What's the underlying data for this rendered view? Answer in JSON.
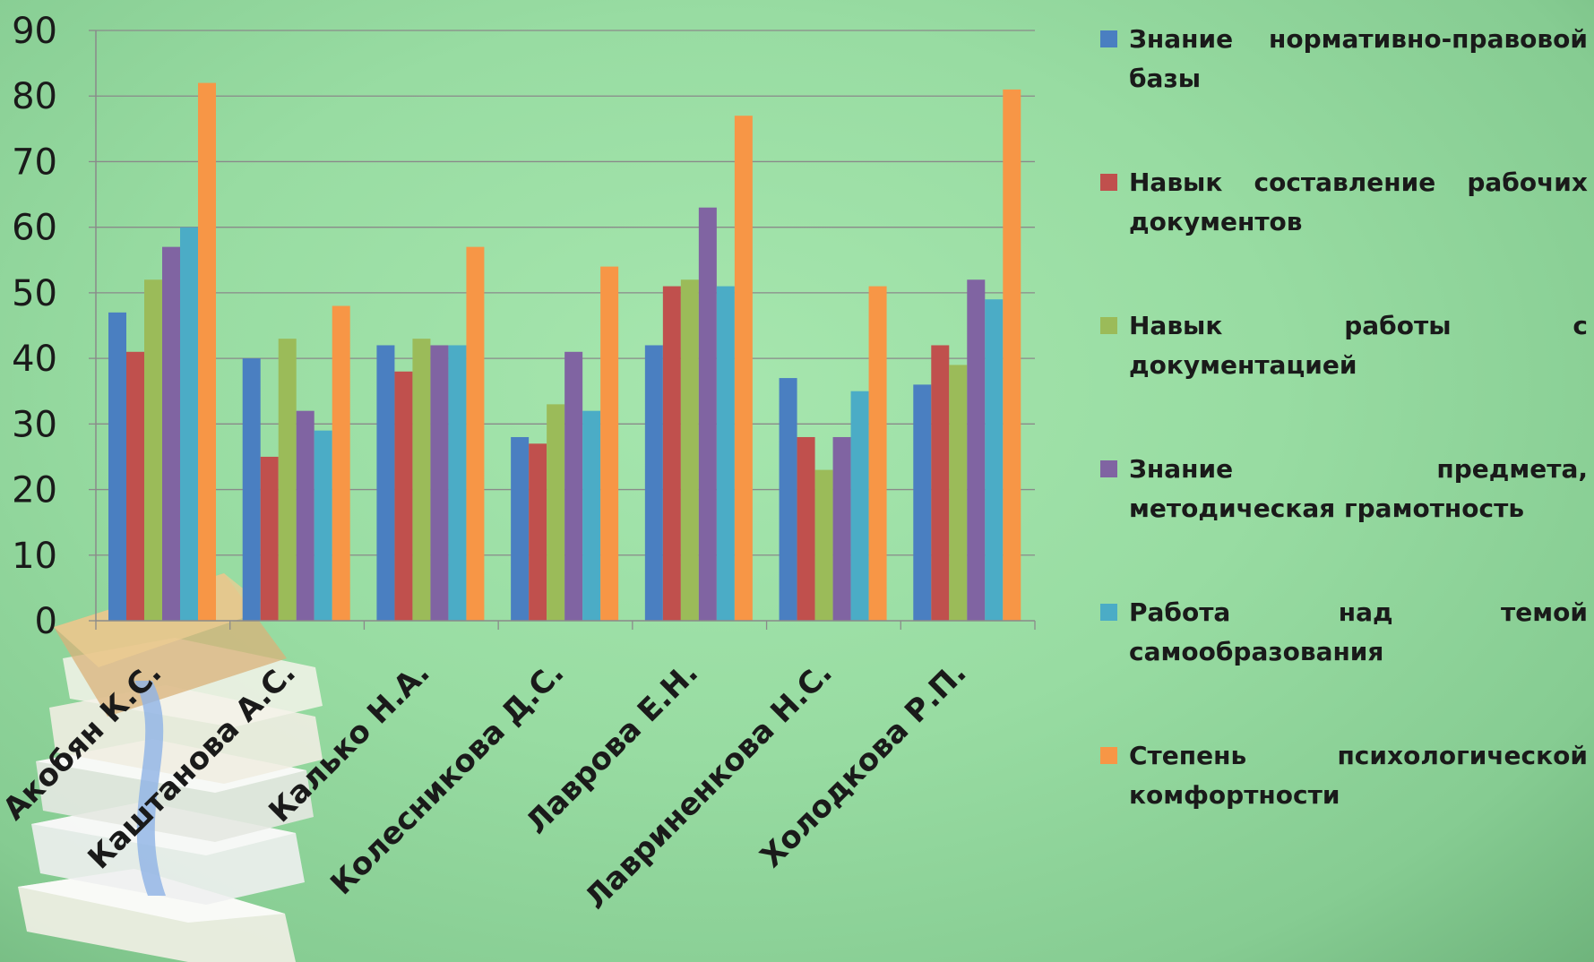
{
  "chart_data": {
    "type": "bar",
    "title": "",
    "xlabel": "",
    "ylabel": "",
    "ylim": [
      0,
      90
    ],
    "yticks": [
      0,
      10,
      20,
      30,
      40,
      50,
      60,
      70,
      80,
      90
    ],
    "grid": true,
    "legend_position": "right",
    "categories": [
      "Акобян К.С.",
      "Каштанова А.С.",
      "Калько Н.А.",
      "Колесникова Д.С.",
      "Лаврова Е.Н.",
      "Лавриненкова Н.С.",
      "Холодкова Р.П."
    ],
    "series": [
      {
        "name": "Знание нормативно-правовой базы",
        "color": "#4a7fc1",
        "values": [
          47,
          40,
          42,
          28,
          42,
          37,
          36
        ]
      },
      {
        "name": "Навык составление рабочих документов",
        "color": "#c0504d",
        "values": [
          41,
          25,
          38,
          27,
          51,
          28,
          42
        ]
      },
      {
        "name": "Навык работы с документацией",
        "color": "#9bbb59",
        "values": [
          52,
          43,
          43,
          33,
          52,
          23,
          39
        ]
      },
      {
        "name": "Знание предмета, методическая грамотность",
        "color": "#8064a2",
        "values": [
          57,
          32,
          42,
          41,
          63,
          28,
          52
        ]
      },
      {
        "name": "Работа над темой самообразования",
        "color": "#4bacc6",
        "values": [
          60,
          29,
          42,
          32,
          51,
          35,
          49
        ]
      },
      {
        "name": "Степень психологической комфортности",
        "color": "#f79646",
        "values": [
          82,
          48,
          57,
          54,
          77,
          51,
          81
        ]
      }
    ]
  }
}
